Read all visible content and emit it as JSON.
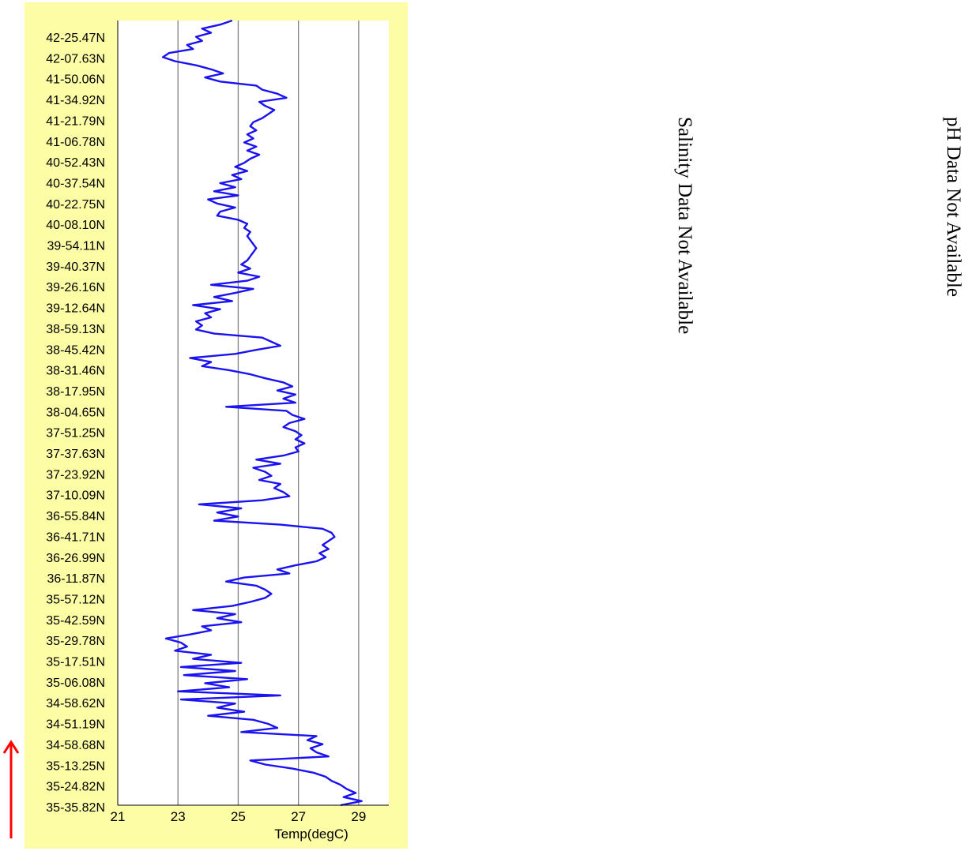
{
  "chart_data": {
    "type": "line",
    "orientation": "vertical",
    "xlabel": "Temp(degC)",
    "xlim": [
      21,
      30
    ],
    "xticks": [
      "21",
      "23",
      "25",
      "27",
      "29"
    ],
    "xtick_values": [
      21,
      23,
      25,
      27,
      29
    ],
    "grid": {
      "vertical": true,
      "at": [
        23,
        25,
        27,
        29
      ]
    },
    "ylabel": "",
    "ytick_labels": [
      "42-25.47N",
      "42-07.63N",
      "41-50.06N",
      "41-34.92N",
      "41-21.79N",
      "41-06.78N",
      "40-52.43N",
      "40-37.54N",
      "40-22.75N",
      "40-08.10N",
      "39-54.11N",
      "39-40.37N",
      "39-26.16N",
      "39-12.64N",
      "38-59.13N",
      "38-45.42N",
      "38-31.46N",
      "38-17.95N",
      "38-04.65N",
      "37-51.25N",
      "37-37.63N",
      "37-23.92N",
      "37-10.09N",
      "36-55.84N",
      "36-41.71N",
      "36-26.99N",
      "36-11.87N",
      "35-57.12N",
      "35-42.59N",
      "35-29.78N",
      "35-17.51N",
      "35-06.08N",
      "34-58.62N",
      "34-51.19N",
      "34-58.68N",
      "35-13.25N",
      "35-24.82N",
      "35-35.82N"
    ],
    "series": [
      {
        "color": "#1a12f0",
        "temp": [
          24.8,
          24.4,
          23.8,
          24.1,
          23.6,
          23.8,
          23.3,
          23.5,
          22.7,
          22.5,
          22.9,
          23.6,
          24.1,
          24.5,
          23.9,
          24.4,
          25.6,
          25.8,
          26.3,
          26.6,
          25.7,
          25.9,
          26.2,
          26.0,
          25.8,
          25.5,
          25.4,
          25.6,
          25.3,
          25.5,
          25.2,
          25.6,
          25.3,
          25.7,
          25.4,
          25.2,
          24.9,
          25.3,
          24.8,
          25.1,
          24.4,
          24.9,
          24.2,
          25.0,
          24.0,
          24.3,
          24.9,
          24.4,
          24.3,
          25.0,
          25.3,
          25.2,
          25.4,
          25.3,
          25.4,
          25.5,
          25.6,
          25.5,
          25.4,
          25.3,
          25.1,
          25.4,
          25.0,
          25.7,
          25.3,
          24.1,
          25.5,
          24.9,
          24.2,
          24.8,
          23.5,
          24.4,
          23.9,
          24.1,
          23.6,
          23.8,
          23.6,
          24.2,
          25.8,
          26.1,
          26.4,
          25.6,
          24.9,
          23.4,
          24.1,
          23.8,
          24.7,
          25.4,
          25.9,
          26.5,
          26.8,
          26.3,
          26.9,
          26.5,
          26.9,
          24.6,
          26.6,
          26.8,
          27.2,
          26.7,
          26.5,
          26.9,
          27.1,
          26.9,
          27.2,
          26.9,
          27.0,
          26.5,
          25.6,
          26.4,
          25.5,
          25.9,
          26.1,
          25.7,
          26.4,
          26.2,
          26.5,
          26.7,
          25.8,
          23.7,
          25.1,
          24.3,
          25.0,
          24.2,
          26.4,
          27.8,
          28.1,
          28.2,
          28.0,
          27.8,
          28.0,
          27.7,
          27.9,
          27.6,
          26.9,
          26.3,
          26.7,
          25.2,
          24.6,
          25.6,
          25.9,
          26.1,
          25.9,
          25.4,
          24.8,
          23.5,
          24.9,
          24.3,
          25.1,
          23.8,
          24.1,
          23.4,
          22.6,
          23.1,
          23.3,
          22.9,
          24.1,
          23.5,
          25.1,
          23.1,
          24.9,
          23.2,
          25.3,
          23.9,
          24.7,
          23.0,
          26.4,
          23.1,
          24.9,
          24.3,
          25.2,
          24.0,
          25.5,
          26.0,
          26.3,
          25.1,
          27.6,
          27.3,
          27.8,
          27.4,
          27.6,
          28.0,
          25.4,
          25.9,
          26.8,
          27.5,
          27.9,
          28.1,
          28.4,
          28.6,
          28.9,
          28.5,
          29.1,
          28.4
        ]
      }
    ]
  },
  "notes": {
    "salinity": "Salinity Data Not Available",
    "ph": "pH Data Not Available"
  },
  "colors": {
    "panel_bg": "#fdfda6",
    "plot_bg": "#ffffff",
    "line": "#1a12f0",
    "grid": "#808080",
    "arrow": "#ff0000"
  }
}
